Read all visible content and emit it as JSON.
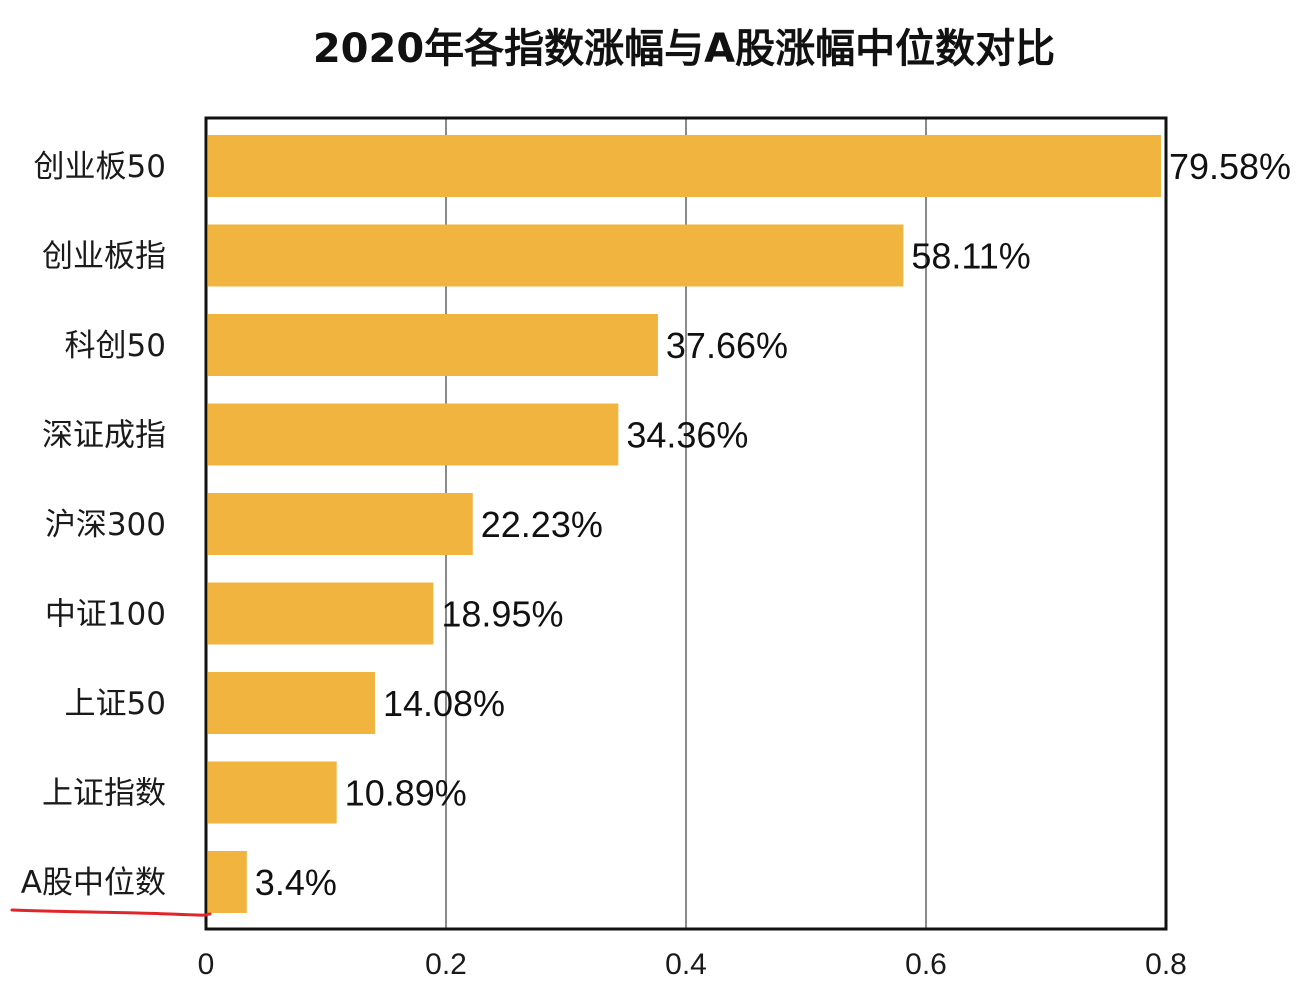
{
  "chart_data": {
    "type": "bar",
    "orientation": "horizontal",
    "title": "2020年各指数涨幅与A股涨幅中位数对比",
    "categories": [
      "创业板50",
      "创业板指",
      "科创50",
      "深证成指",
      "沪深300",
      "中证100",
      "上证50",
      "上证指数",
      "A股中位数"
    ],
    "values": [
      0.7958,
      0.5811,
      0.3766,
      0.3436,
      0.2223,
      0.1895,
      0.1408,
      0.1089,
      0.034
    ],
    "value_labels": [
      "79.58%",
      "58.11%",
      "37.66%",
      "34.36%",
      "22.23%",
      "18.95%",
      "14.08%",
      "10.89%",
      "3.4%"
    ],
    "xlim": [
      0,
      0.8
    ],
    "xticks": [
      "0",
      "0.2",
      "0.4",
      "0.6",
      "0.8"
    ],
    "xlabel": "",
    "ylabel": "",
    "grid": "vertical",
    "highlighted_category": "A股中位数",
    "colors": {
      "bar": "#F0B43F",
      "grid": "#8a8a8a",
      "frame": "#111111",
      "highlight_underline": "#E0262B"
    }
  }
}
